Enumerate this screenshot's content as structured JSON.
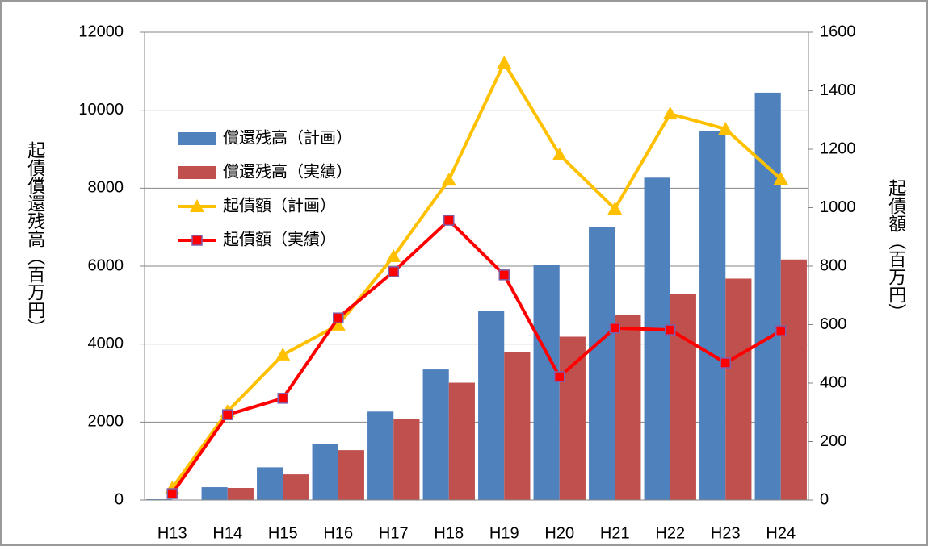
{
  "chart_data": {
    "type": "bar_line",
    "y_label": "起債償還残高（百万円）",
    "y2_label": "起債額（百万円）",
    "categories": [
      "H13",
      "H14",
      "H15",
      "H16",
      "H17",
      "H18",
      "H19",
      "H20",
      "H21",
      "H22",
      "H23",
      "H24"
    ],
    "series": [
      {
        "name": "償還残高（計画）",
        "type": "bar",
        "color": "#4f81bd",
        "values": [
          20,
          330,
          840,
          1430,
          2270,
          3350,
          4850,
          6030,
          7000,
          8270,
          9470,
          10450
        ]
      },
      {
        "name": "償還残高（実績）",
        "type": "bar",
        "color": "#c0504d",
        "values": [
          10,
          310,
          660,
          1280,
          2070,
          3010,
          3790,
          4190,
          4740,
          5280,
          5680,
          6170
        ]
      },
      {
        "name": "起債額（計画）",
        "type": "line",
        "marker": "triangle",
        "axis": "y2",
        "color": "#ffc000",
        "values": [
          41,
          303,
          497,
          599,
          833,
          1095,
          1495,
          1181,
          996,
          1321,
          1269,
          1098
        ]
      },
      {
        "name": "起債額（実績）",
        "type": "line",
        "marker": "square",
        "axis": "y2",
        "color": "#ff0000",
        "values": [
          22,
          292,
          348,
          623,
          781,
          957,
          770,
          422,
          588,
          582,
          469,
          579
        ]
      }
    ],
    "ylim": [
      0,
      12000
    ],
    "yticks": [
      0,
      2000,
      4000,
      6000,
      8000,
      10000,
      12000
    ],
    "y2lim": [
      0,
      1600
    ],
    "y2ticks": [
      0,
      200,
      400,
      600,
      800,
      1000,
      1200,
      1400,
      1600
    ],
    "grid": true,
    "legend": "upper-left"
  }
}
